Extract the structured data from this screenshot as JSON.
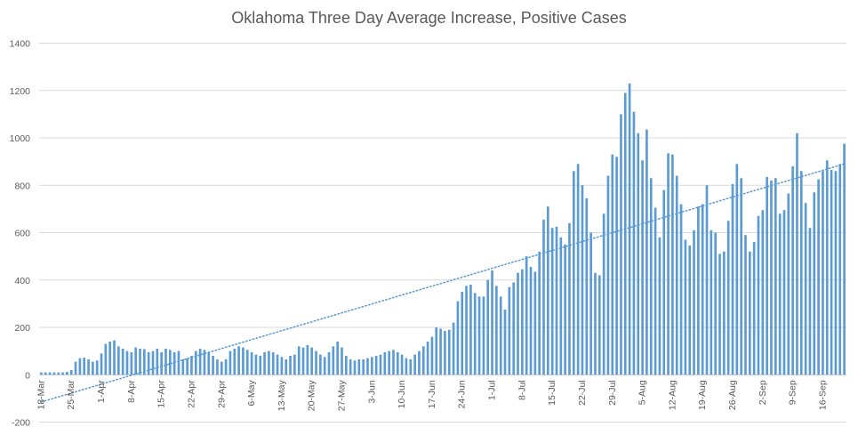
{
  "chart_data": {
    "type": "bar",
    "title": "Oklahoma Three Day Average Increase, Positive Cases",
    "xlabel": "",
    "ylabel": "",
    "ylim": [
      -200,
      1400
    ],
    "yticks": [
      -200,
      0,
      200,
      400,
      600,
      800,
      1000,
      1200,
      1400
    ],
    "grid": true,
    "legend": "none",
    "bar_color": "#5b9bd5",
    "trendline": {
      "type": "linear",
      "style": "dotted",
      "color": "#5b9bd5",
      "start": -115,
      "end": 890
    },
    "x_tick_labels": [
      "18-Mar",
      "25-Mar",
      "1-Apr",
      "8-Apr",
      "15-Apr",
      "22-Apr",
      "29-Apr",
      "6-May",
      "13-May",
      "20-May",
      "27-May",
      "3-Jun",
      "10-Jun",
      "17-Jun",
      "24-Jun",
      "1-Jul",
      "8-Jul",
      "15-Jul",
      "22-Jul",
      "29-Jul",
      "5-Aug",
      "12-Aug",
      "19-Aug",
      "26-Aug",
      "2-Sep",
      "9-Sep",
      "16-Sep"
    ],
    "start_date": "2020-03-18",
    "end_date": "2020-09-16",
    "values": [
      10,
      10,
      10,
      10,
      10,
      10,
      12,
      20,
      55,
      70,
      72,
      65,
      55,
      60,
      90,
      130,
      140,
      145,
      120,
      110,
      100,
      95,
      115,
      110,
      108,
      95,
      100,
      110,
      95,
      110,
      105,
      95,
      100,
      65,
      70,
      80,
      100,
      110,
      105,
      95,
      80,
      65,
      55,
      65,
      100,
      110,
      120,
      115,
      105,
      95,
      85,
      80,
      95,
      100,
      95,
      85,
      75,
      65,
      80,
      85,
      120,
      115,
      125,
      115,
      100,
      85,
      75,
      95,
      120,
      140,
      115,
      80,
      65,
      60,
      65,
      65,
      70,
      75,
      80,
      85,
      95,
      100,
      105,
      95,
      85,
      70,
      65,
      85,
      100,
      120,
      140,
      160,
      200,
      195,
      185,
      190,
      220,
      310,
      350,
      375,
      380,
      345,
      330,
      330,
      400,
      440,
      375,
      330,
      275,
      370,
      390,
      430,
      445,
      500,
      455,
      435,
      520,
      655,
      710,
      620,
      625,
      580,
      550,
      640,
      860,
      890,
      800,
      745,
      600,
      430,
      420,
      680,
      840,
      930,
      920,
      1100,
      1190,
      1230,
      1110,
      1020,
      905,
      1035,
      830,
      705,
      580,
      780,
      935,
      930,
      840,
      720,
      570,
      545,
      610,
      710,
      720,
      800,
      610,
      600,
      510,
      520,
      650,
      805,
      890,
      830,
      590,
      520,
      560,
      670,
      695,
      835,
      820,
      830,
      680,
      695,
      765,
      880,
      1020,
      860,
      725,
      620,
      770,
      825,
      860,
      905,
      865,
      860,
      890,
      975
    ]
  }
}
